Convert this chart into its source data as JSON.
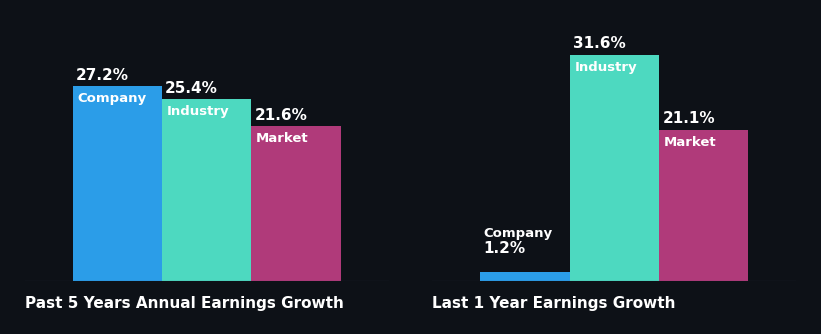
{
  "background_color": "#0d1117",
  "groups": [
    {
      "title": "Past 5 Years Annual Earnings Growth",
      "bars": [
        {
          "label": "Company",
          "value": 27.2,
          "color": "#2b9de8",
          "label_inside": true
        },
        {
          "label": "Industry",
          "value": 25.4,
          "color": "#4dd9c0",
          "label_inside": true
        },
        {
          "label": "Market",
          "value": 21.6,
          "color": "#b03a7a",
          "label_inside": true
        }
      ]
    },
    {
      "title": "Last 1 Year Earnings Growth",
      "bars": [
        {
          "label": "Company",
          "value": 1.2,
          "color": "#2b9de8",
          "label_inside": false
        },
        {
          "label": "Industry",
          "value": 31.6,
          "color": "#4dd9c0",
          "label_inside": true
        },
        {
          "label": "Market",
          "value": 21.1,
          "color": "#b03a7a",
          "label_inside": true
        }
      ]
    }
  ],
  "bar_width": 0.28,
  "bar_gap": 0.0,
  "text_color": "#ffffff",
  "label_fontsize": 9.5,
  "value_fontsize": 11,
  "title_fontsize": 11,
  "ylim": [
    0,
    36
  ],
  "figsize": [
    8.21,
    3.34
  ],
  "dpi": 100
}
